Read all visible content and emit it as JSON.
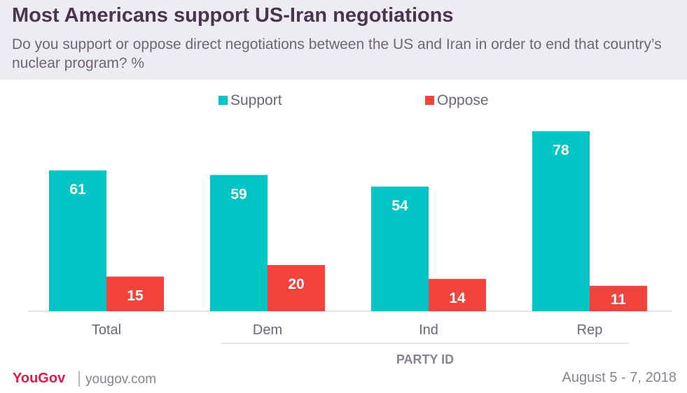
{
  "header": {
    "title": "Most Americans support US-Iran negotiations",
    "subtitle": "Do you support or oppose direct negotiations between the US and Iran in order to end that country’s nuclear program? %"
  },
  "chart_data": {
    "type": "bar",
    "categories": [
      "Total",
      "Dem",
      "Ind",
      "Rep"
    ],
    "series": [
      {
        "name": "Support",
        "values": [
          61,
          59,
          54,
          78
        ],
        "color": "#00c5c4"
      },
      {
        "name": "Oppose",
        "values": [
          15,
          20,
          14,
          11
        ],
        "color": "#f4433c"
      }
    ],
    "group_label": "PARTY ID",
    "group_categories": [
      "Dem",
      "Ind",
      "Rep"
    ],
    "ylim": [
      0,
      80
    ],
    "grid": false,
    "legend": "top-center"
  },
  "footer": {
    "brand": "YouGov",
    "site": "yougov.com",
    "date": "August 5 - 7, 2018",
    "brand_color": "#e8174b"
  }
}
